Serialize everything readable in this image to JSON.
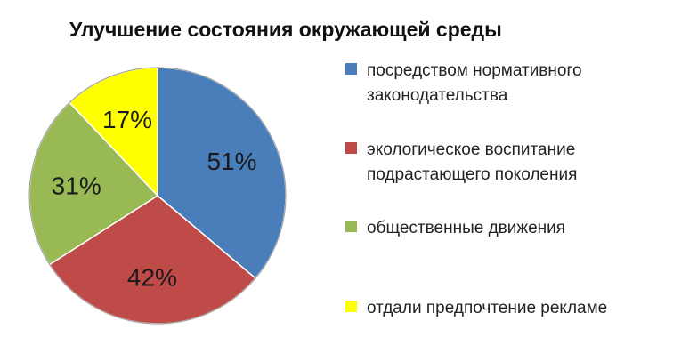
{
  "chart_data": {
    "type": "pie",
    "title": "Улучшение состояния окружающей среды",
    "slices": [
      {
        "label": "посредством нормативного\nзаконодательства",
        "value": 51,
        "value_label": "51%",
        "color": "#4A7EBB"
      },
      {
        "label": "экологическое воспитание\nподрастающего поколения",
        "value": 42,
        "value_label": "42%",
        "color": "#BE4B48"
      },
      {
        "label": "общественные  движения",
        "value": 31,
        "value_label": "31%",
        "color": "#98B954"
      },
      {
        "label": "отдали предпочтение рекламе",
        "value": 17,
        "value_label": "17%",
        "color": "#FFFF00"
      }
    ],
    "legend_position": "right"
  }
}
